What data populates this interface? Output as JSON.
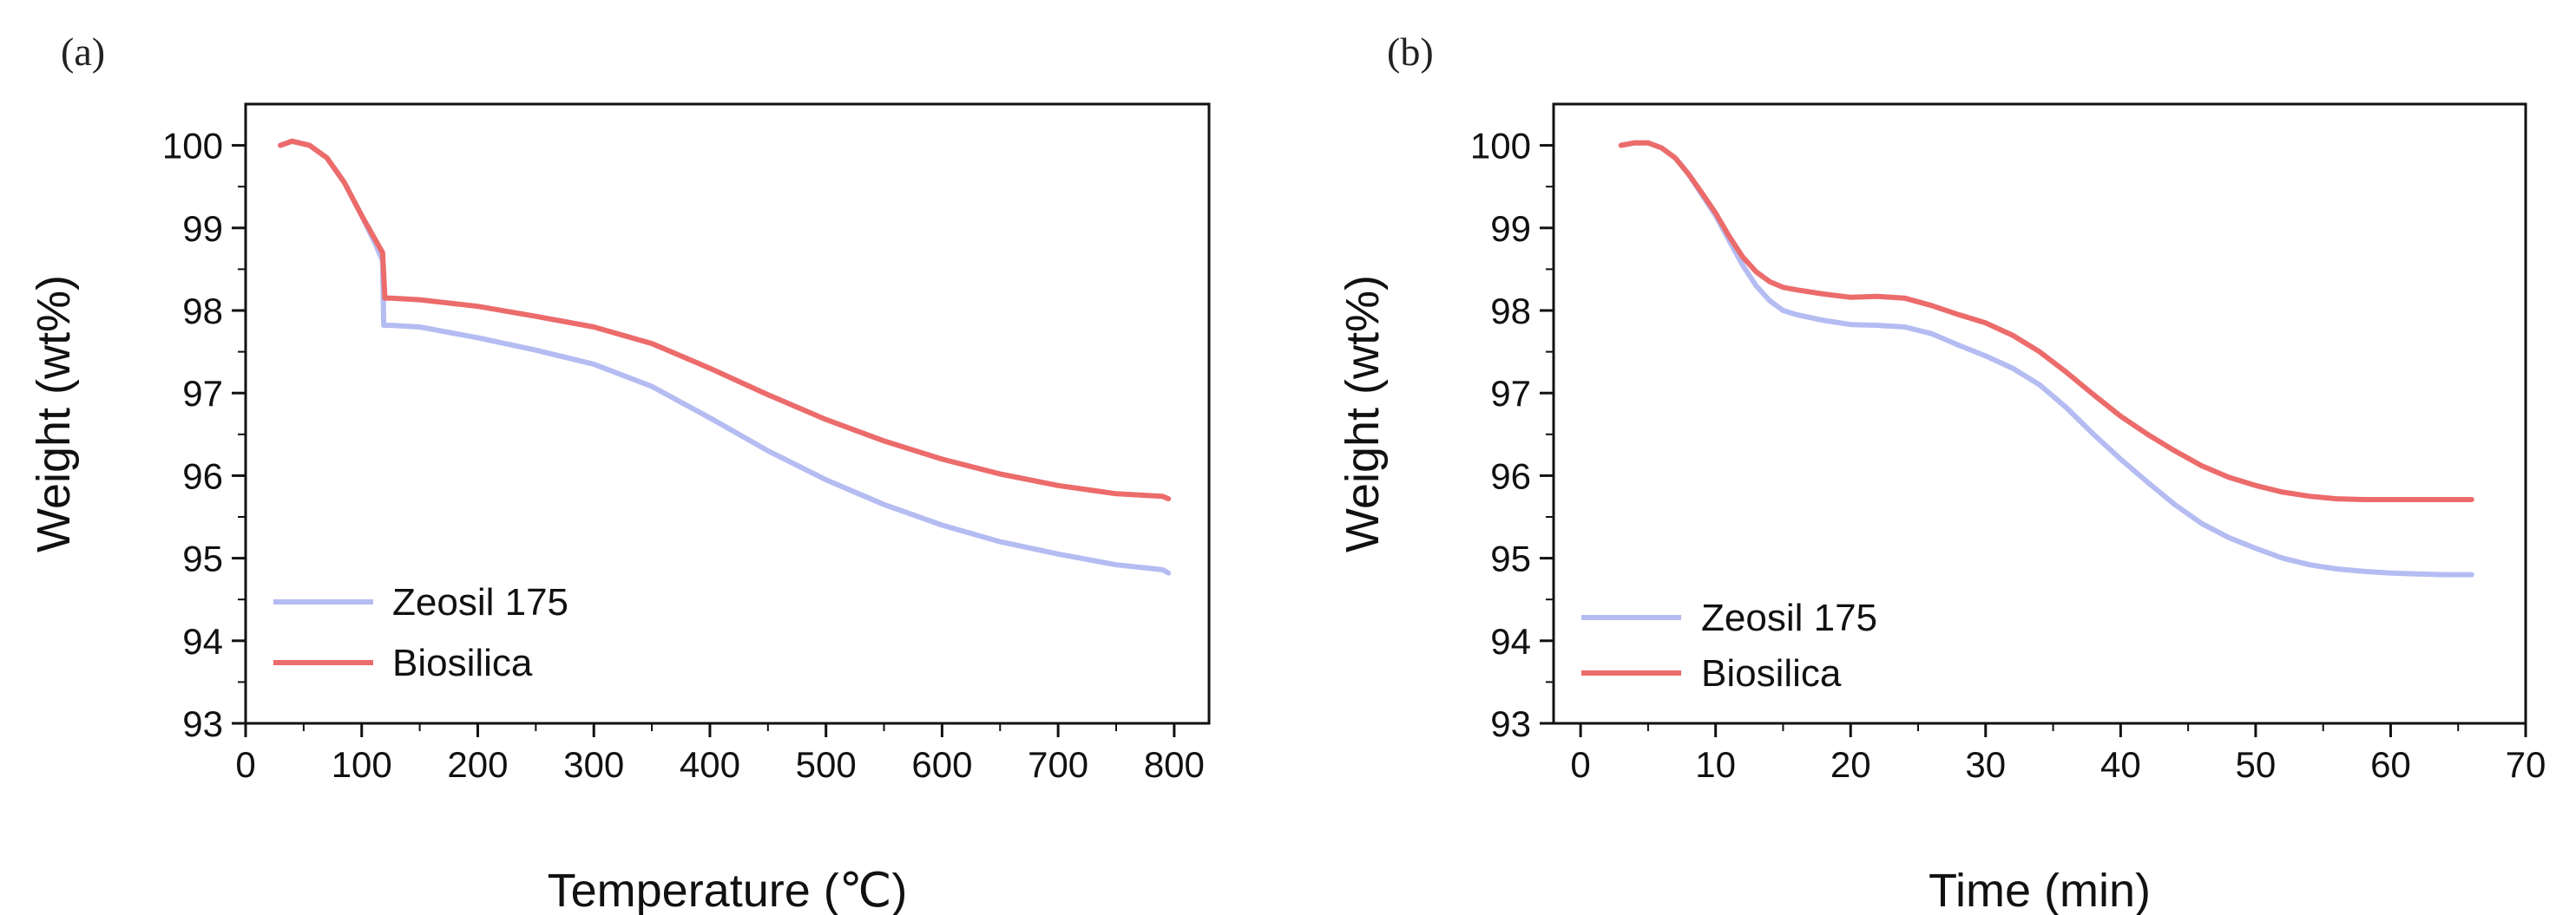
{
  "chart_data": [
    {
      "type": "line",
      "panel_label": "(a)",
      "title": "",
      "xlabel": "Temperature (℃)",
      "ylabel": "Weight (wt%)",
      "xlim": [
        0,
        830
      ],
      "ylim": [
        93,
        100.5
      ],
      "xticks": [
        0,
        100,
        200,
        300,
        400,
        500,
        600,
        700,
        800
      ],
      "yticks": [
        93,
        94,
        95,
        96,
        97,
        98,
        99,
        100
      ],
      "legend_position": "bottom-left",
      "series": [
        {
          "name": "Zeosil 175",
          "color": "#b4bcf2",
          "x": [
            30,
            40,
            55,
            70,
            85,
            100,
            112,
            118,
            119,
            125,
            150,
            200,
            250,
            300,
            350,
            400,
            450,
            500,
            550,
            600,
            650,
            700,
            750,
            790,
            795
          ],
          "y": [
            100.0,
            100.05,
            100.0,
            99.85,
            99.55,
            99.15,
            98.8,
            98.6,
            97.82,
            97.82,
            97.8,
            97.67,
            97.52,
            97.35,
            97.08,
            96.7,
            96.3,
            95.95,
            95.65,
            95.4,
            95.2,
            95.05,
            94.92,
            94.86,
            94.82
          ]
        },
        {
          "name": "Biosilica",
          "color": "#ec6b6b",
          "x": [
            30,
            40,
            55,
            70,
            85,
            100,
            112,
            118,
            120,
            125,
            150,
            200,
            250,
            300,
            350,
            400,
            450,
            500,
            550,
            600,
            650,
            700,
            750,
            790,
            795
          ],
          "y": [
            100.0,
            100.05,
            100.0,
            99.85,
            99.55,
            99.15,
            98.85,
            98.7,
            98.15,
            98.15,
            98.13,
            98.05,
            97.93,
            97.8,
            97.6,
            97.3,
            96.98,
            96.68,
            96.42,
            96.2,
            96.02,
            95.88,
            95.78,
            95.75,
            95.72
          ]
        }
      ]
    },
    {
      "type": "line",
      "panel_label": "(b)",
      "title": "",
      "xlabel": "Time (min)",
      "ylabel": "Weight (wt%)",
      "xlim": [
        -2,
        70
      ],
      "ylim": [
        93,
        100.5
      ],
      "xticks": [
        0,
        10,
        20,
        30,
        40,
        50,
        60,
        70
      ],
      "yticks": [
        93,
        94,
        95,
        96,
        97,
        98,
        99,
        100
      ],
      "legend_position": "bottom-left",
      "series": [
        {
          "name": "Zeosil 175",
          "color": "#b4bcf2",
          "x": [
            3,
            4,
            5,
            6,
            7,
            8,
            9,
            10,
            11,
            12,
            13,
            14,
            15,
            16,
            18,
            20,
            22,
            24,
            26,
            28,
            30,
            32,
            34,
            36,
            38,
            40,
            42,
            44,
            46,
            48,
            50,
            52,
            54,
            56,
            58,
            60,
            62,
            64,
            66
          ],
          "y": [
            100.0,
            100.03,
            100.03,
            99.97,
            99.85,
            99.65,
            99.4,
            99.15,
            98.85,
            98.55,
            98.3,
            98.12,
            98.0,
            97.95,
            97.88,
            97.83,
            97.82,
            97.8,
            97.72,
            97.58,
            97.45,
            97.3,
            97.1,
            96.82,
            96.5,
            96.2,
            95.92,
            95.65,
            95.42,
            95.25,
            95.12,
            95.0,
            94.92,
            94.87,
            94.84,
            94.82,
            94.81,
            94.8,
            94.8
          ]
        },
        {
          "name": "Biosilica",
          "color": "#ec6b6b",
          "x": [
            3,
            4,
            5,
            6,
            7,
            8,
            9,
            10,
            11,
            12,
            13,
            14,
            15,
            16,
            18,
            20,
            22,
            24,
            26,
            28,
            30,
            32,
            34,
            36,
            38,
            40,
            42,
            44,
            46,
            48,
            50,
            52,
            54,
            56,
            58,
            60,
            62,
            64,
            66
          ],
          "y": [
            100.0,
            100.03,
            100.03,
            99.97,
            99.85,
            99.65,
            99.42,
            99.18,
            98.9,
            98.65,
            98.47,
            98.35,
            98.28,
            98.25,
            98.2,
            98.16,
            98.17,
            98.15,
            98.06,
            97.95,
            97.85,
            97.7,
            97.5,
            97.25,
            96.98,
            96.72,
            96.5,
            96.3,
            96.12,
            95.98,
            95.88,
            95.8,
            95.75,
            95.72,
            95.71,
            95.71,
            95.71,
            95.71,
            95.71
          ]
        }
      ]
    }
  ]
}
